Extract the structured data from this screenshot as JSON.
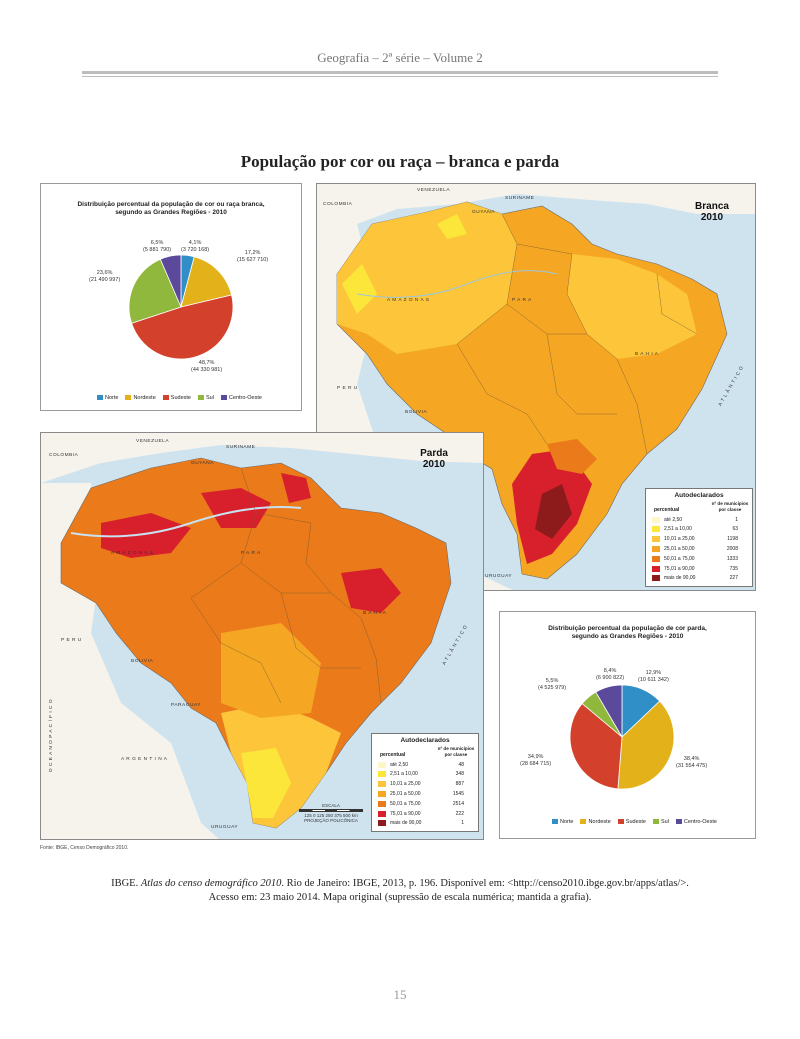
{
  "header": {
    "running_title": "Geografia – 2ª série – Volume 2"
  },
  "title": "População por cor ou raça – branca e parda",
  "colors": {
    "norte": "#2f8fc6",
    "nordeste": "#e3b21a",
    "sudeste": "#d3412c",
    "sul": "#8fb83c",
    "centro_oeste": "#5b4a9b",
    "ocean": "#cfe3ef",
    "neighbor": "#f6f3ec",
    "classes": [
      "#fdf6c9",
      "#fde63a",
      "#fcc53a",
      "#f5a623",
      "#ea7a1a",
      "#d8202c",
      "#8e1b1b"
    ]
  },
  "legend_regions": [
    "Norte",
    "Nordeste",
    "Sudeste",
    "Sul",
    "Centro-Oeste"
  ],
  "pie_branca": {
    "title": "Distribuição percentual da população de cor ou raça branca,",
    "subtitle": "segundo as Grandes Regiões - 2010",
    "labels": {
      "norte": {
        "pct": "4,1%",
        "abs": "(3 720 168)"
      },
      "nordeste": {
        "pct": "17,2%",
        "abs": "(15 627 710)"
      },
      "sudeste": {
        "pct": "48,7%",
        "abs": "(44 330 981)"
      },
      "sul": {
        "pct": "23,6%",
        "abs": "(21 490 997)"
      },
      "centro_oeste": {
        "pct": "6,5%",
        "abs": "(5 881 790)"
      }
    }
  },
  "pie_parda": {
    "title": "Distribuição percentual da população de cor parda,",
    "subtitle": "segundo as Grandes Regiões - 2010",
    "labels": {
      "norte": {
        "pct": "12,9%",
        "abs": "(10 611 342)"
      },
      "nordeste": {
        "pct": "38,4%",
        "abs": "(31 554 475)"
      },
      "sudeste": {
        "pct": "34,9%",
        "abs": "(28 684 715)"
      },
      "sul": {
        "pct": "5,5%",
        "abs": "(4 525 979)"
      },
      "centro_oeste": {
        "pct": "8,4%",
        "abs": "(6 900 822)"
      }
    }
  },
  "chart_data": [
    {
      "type": "pie",
      "title": "Distribuição percentual da população de cor ou raça branca, segundo as Grandes Regiões - 2010",
      "categories": [
        "Norte",
        "Nordeste",
        "Sudeste",
        "Sul",
        "Centro-Oeste"
      ],
      "values": [
        4.1,
        17.2,
        48.7,
        23.6,
        6.5
      ],
      "absolute": [
        3720168,
        15627710,
        44330981,
        21490997,
        5881790
      ],
      "legend": "bottom"
    },
    {
      "type": "pie",
      "title": "Distribuição percentual da população de cor parda, segundo as Grandes Regiões - 2010",
      "categories": [
        "Norte",
        "Nordeste",
        "Sudeste",
        "Sul",
        "Centro-Oeste"
      ],
      "values": [
        12.9,
        38.4,
        34.9,
        5.5,
        8.4
      ],
      "absolute": [
        10611342,
        31554475,
        28684715,
        4525979,
        6900822
      ],
      "legend": "bottom"
    }
  ],
  "map_branca": {
    "title_line1": "Branca",
    "title_line2": "2010",
    "legend": {
      "title": "Autodeclarados",
      "col1": "percentual",
      "col2": "nº de municípios por classe",
      "rows": [
        {
          "range": "até 2,50",
          "count": "1"
        },
        {
          "range": "2,51 a 10,00",
          "count": "63"
        },
        {
          "range": "10,01 a 25,00",
          "count": "1198"
        },
        {
          "range": "25,01 a 50,00",
          "count": "2008"
        },
        {
          "range": "50,01 a 75,00",
          "count": "1333"
        },
        {
          "range": "75,01 a 90,00",
          "count": "735"
        },
        {
          "range": "mais de 90,00",
          "count": "227"
        }
      ]
    },
    "place_labels": {
      "venezuela": "VENEZUELA",
      "colombia": "COLOMBIA",
      "peru": "P E R U",
      "bolivia": "BOLIVIA",
      "uruguay": "URUGUAY",
      "suriname": "SURINAME",
      "guyana": "GUYANA",
      "amazonas": "A M A Z O N A S",
      "para": "P A R A",
      "bahia": "B A H I A",
      "atlantico": "A T L Â N T I C O"
    }
  },
  "map_parda": {
    "title_line1": "Parda",
    "title_line2": "2010",
    "legend": {
      "title": "Autodeclarados",
      "col1": "percentual",
      "col2": "nº de municípios por classe",
      "rows": [
        {
          "range": "até 2,50",
          "count": "48"
        },
        {
          "range": "2,51 a 10,00",
          "count": "348"
        },
        {
          "range": "10,01 a 25,00",
          "count": "887"
        },
        {
          "range": "25,01 a 50,00",
          "count": "1545"
        },
        {
          "range": "50,01 a 75,00",
          "count": "2514"
        },
        {
          "range": "75,01 a 90,00",
          "count": "222"
        },
        {
          "range": "mais de 90,00",
          "count": "1"
        }
      ]
    },
    "scale_label": "ESCALA",
    "scale_ticks": "125  0   125  250  375  500 km",
    "projection": "PROJEÇÃO POLICÔNICA",
    "place_labels": {
      "venezuela": "VENEZUELA",
      "colombia": "COLOMBIA",
      "peru": "P E R U",
      "bolivia": "BOLIVIA",
      "paraguay": "PARAGUAY",
      "argentina": "A R G E N T I N A",
      "uruguay": "URUGUAY",
      "suriname": "SURINAME",
      "guyana": "GUYANA",
      "amazonas": "A M A Z O N A S",
      "para": "P A R A",
      "bahia": "B A H I A",
      "pacifico": "O C E A N O   P A C Í F I C O",
      "atlantico": "A T L Â N T I C O"
    }
  },
  "fonte": "Fonte: IBGE, Censo Demográfico 2010.",
  "citation": {
    "author": "IBGE. ",
    "work": "Atlas do censo demográfico 2010",
    "rest_line1": ". Rio de Janeiro: IBGE, 2013, p. 196. Disponível em: <http://censo2010.ibge.gov.br/apps/atlas/>.",
    "line2": "Acesso em: 23 maio 2014. Mapa original (supressão de escala numérica; mantida a grafia)."
  },
  "page_number": "15"
}
